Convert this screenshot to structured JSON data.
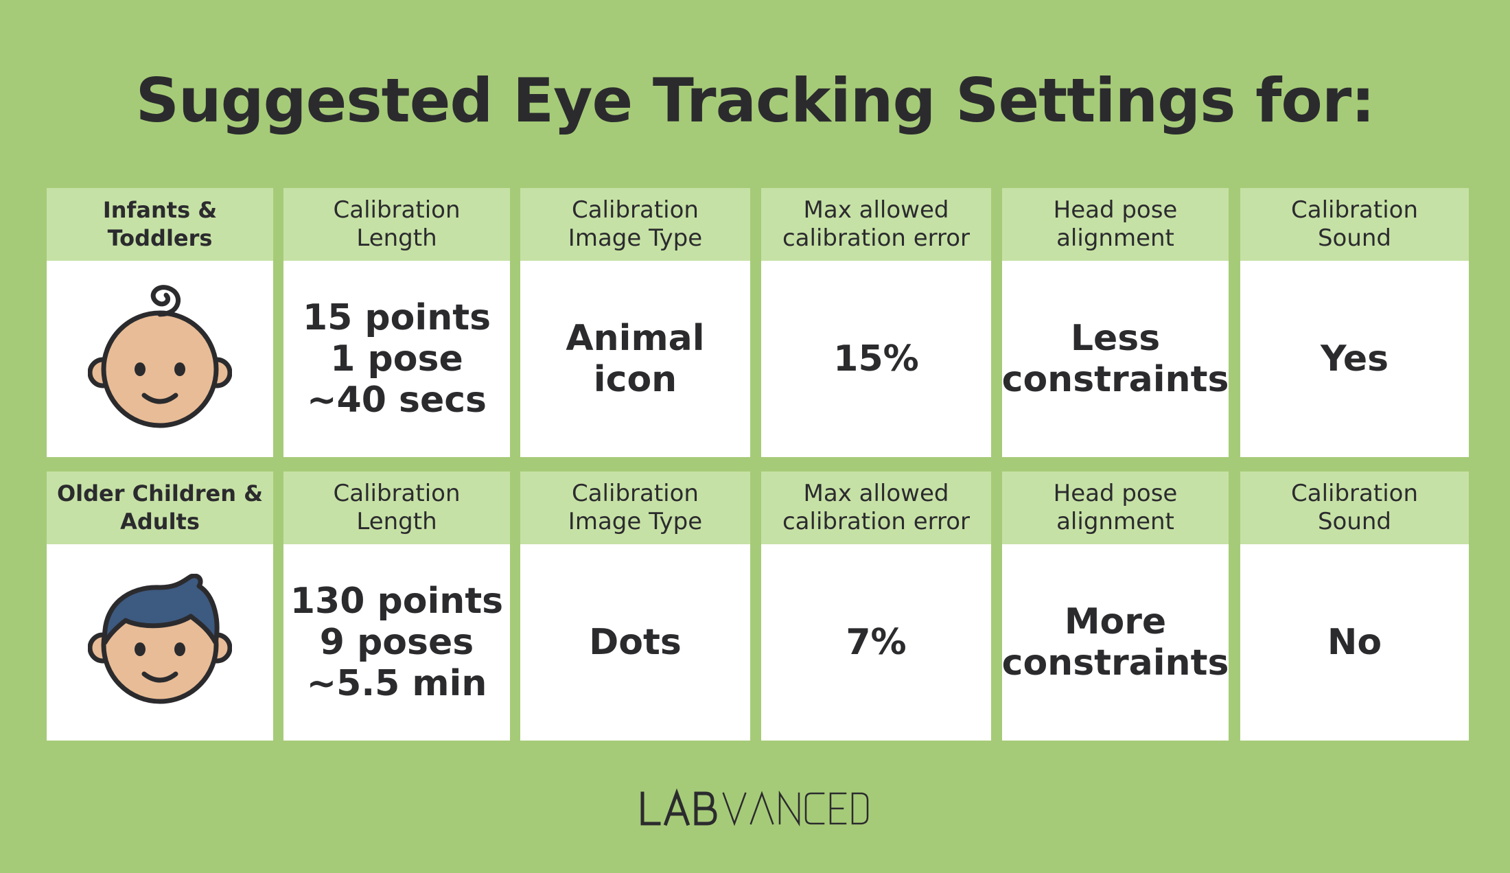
{
  "title": "Suggested Eye Tracking Settings for:",
  "colors": {
    "background": "#a6cb78",
    "header_cell": "#c6e1a5",
    "body_cell": "#ffffff",
    "text": "#2b2b2e",
    "skin": "#e8bc96",
    "hair": "#3d5a80"
  },
  "rows": [
    {
      "group": "Infants &\nToddlers",
      "icon": "baby-face-icon",
      "headers": {
        "length": "Calibration\nLength",
        "image_type": "Calibration\nImage Type",
        "error": "Max allowed\ncalibration error",
        "head_pose": "Head pose\nalignment",
        "sound": "Calibration\nSound"
      },
      "values": {
        "length": "15 points\n1 pose\n~40 secs",
        "image_type": "Animal\nicon",
        "error": "15%",
        "head_pose": "Less\nconstraints",
        "sound": "Yes"
      }
    },
    {
      "group": "Older Children &\nAdults",
      "icon": "child-face-icon",
      "headers": {
        "length": "Calibration\nLength",
        "image_type": "Calibration\nImage Type",
        "error": "Max allowed\ncalibration error",
        "head_pose": "Head pose\nalignment",
        "sound": "Calibration\nSound"
      },
      "values": {
        "length": "130 points\n9 poses\n~5.5 min",
        "image_type": "Dots",
        "error": "7%",
        "head_pose": "More\nconstraints",
        "sound": "No"
      }
    }
  ],
  "logo": "LABVANCED"
}
